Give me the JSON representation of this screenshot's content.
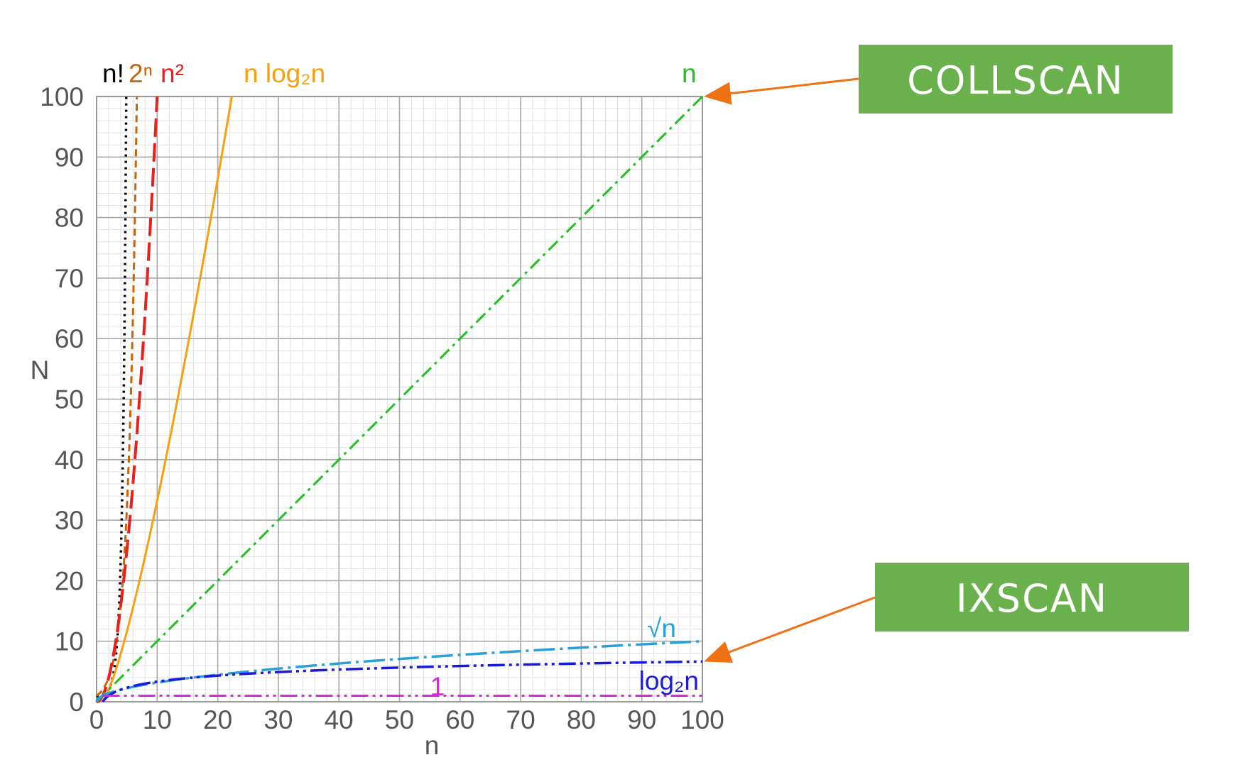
{
  "chart_data": {
    "type": "line",
    "xlabel": "n",
    "ylabel": "N",
    "xlim": [
      0,
      100
    ],
    "ylim": [
      0,
      100
    ],
    "x_ticks": [
      "0",
      "10",
      "20",
      "30",
      "40",
      "50",
      "60",
      "70",
      "80",
      "90",
      "100"
    ],
    "y_ticks": [
      "0",
      "10",
      "20",
      "30",
      "40",
      "50",
      "60",
      "70",
      "80",
      "90",
      "100"
    ],
    "grid": true,
    "series": [
      {
        "name": "n!",
        "color": "#000000",
        "dash": "dotted",
        "formula": "factorial"
      },
      {
        "name": "2ⁿ",
        "color": "#c8640a",
        "dash": "dashed",
        "formula": "pow2"
      },
      {
        "name": "n²",
        "color": "#e8201e",
        "dash": "longdash",
        "formula": "square"
      },
      {
        "name": "n log₂n",
        "color": "#f5a010",
        "dash": "solid",
        "formula": "nlogn"
      },
      {
        "name": "n",
        "color": "#20c020",
        "dash": "dashdot",
        "formula": "linear"
      },
      {
        "name": "√n",
        "color": "#2aa0d8",
        "dash": "longdashdot",
        "formula": "sqrt"
      },
      {
        "name": "log₂n",
        "color": "#1a1adc",
        "dash": "dashdotdot",
        "formula": "log2"
      },
      {
        "name": "1",
        "color": "#e020e0",
        "dash": "dashdotdot",
        "formula": "constant"
      }
    ],
    "callouts": [
      {
        "label": "COLLSCAN",
        "target_series": "n",
        "target_x": 100,
        "target_y": 100
      },
      {
        "label": "IXSCAN",
        "target_series": "log₂n",
        "target_x": 100,
        "target_y": 6.64
      }
    ],
    "callout_color": "#6ab04c",
    "arrow_color": "#f07014"
  }
}
